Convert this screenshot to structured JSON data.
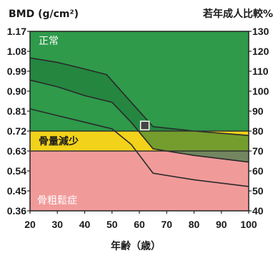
{
  "chart_data": {
    "type": "line",
    "ylabel_left": "BMD (g/cm²)",
    "ylabel_right": "若年成人比較%",
    "xlabel": "年齢（歳）",
    "xlim": [
      20,
      100
    ],
    "ylim_left": [
      0.36,
      1.17
    ],
    "ylim_right": [
      40,
      130
    ],
    "x_ticks": [
      "20",
      "30",
      "40",
      "50",
      "60",
      "70",
      "80",
      "90",
      "100"
    ],
    "y_ticks_left": [
      "1.17",
      "1.08",
      "0.99",
      "0.90",
      "0.81",
      "0.72",
      "0.63",
      "0.54",
      "0.45",
      "0.36"
    ],
    "y_ticks_right": [
      "130",
      "120",
      "110",
      "100",
      "90",
      "80",
      "70",
      "60",
      "50",
      "40"
    ],
    "zones": [
      {
        "label": "正常",
        "from": 0.72,
        "to": 1.17,
        "color": "#2e9a4a"
      },
      {
        "label": "骨量減少",
        "from": 0.63,
        "to": 0.72,
        "color": "#f2d21a"
      },
      {
        "label": "骨粗鬆症",
        "from": 0.36,
        "to": 0.63,
        "color": "#f19a9a"
      }
    ],
    "band_color": "#1f7a3a",
    "series": [
      {
        "x": [
          20,
          30,
          40,
          48,
          57,
          65,
          80,
          100
        ],
        "y": [
          1.05,
          1.03,
          1.0,
          0.975,
          0.85,
          0.74,
          0.72,
          0.7
        ]
      },
      {
        "x": [
          20,
          30,
          40,
          50,
          57,
          65,
          80,
          100
        ],
        "y": [
          0.95,
          0.92,
          0.88,
          0.85,
          0.76,
          0.64,
          0.61,
          0.58
        ]
      },
      {
        "x": [
          20,
          30,
          40,
          50,
          57,
          65,
          80,
          100
        ],
        "y": [
          0.82,
          0.79,
          0.76,
          0.73,
          0.66,
          0.53,
          0.5,
          0.47
        ]
      }
    ],
    "marker": {
      "x": 62,
      "y": 0.745
    }
  }
}
